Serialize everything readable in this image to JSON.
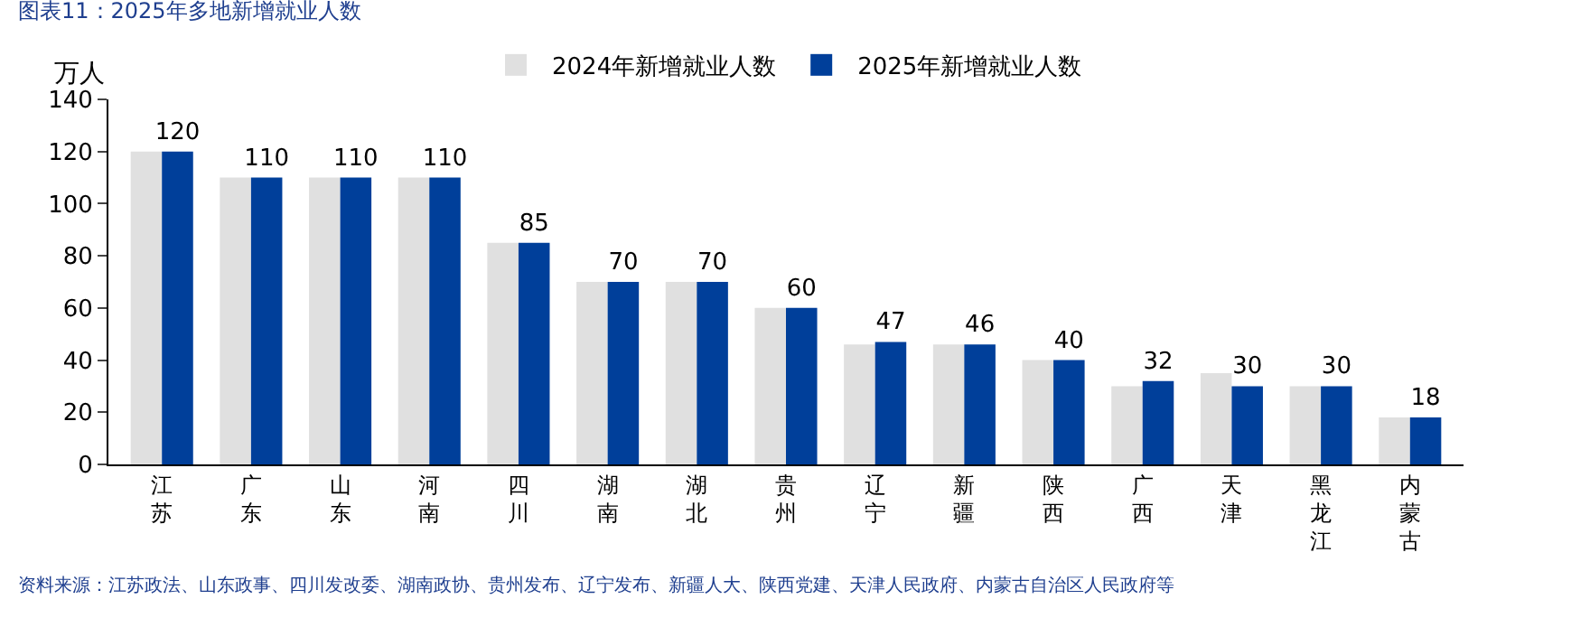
{
  "chart_data": {
    "type": "bar",
    "title": "图表11：2025年多地新增就业人数",
    "ylabel": "万人",
    "categories": [
      "江苏",
      "广东",
      "山东",
      "河南",
      "四川",
      "湖南",
      "湖北",
      "贵州",
      "辽宁",
      "新疆",
      "陕西",
      "广西",
      "天津",
      "黑龙江",
      "内蒙古"
    ],
    "series": [
      {
        "name": "2024年新增就业人数",
        "color": "#e0e0e0",
        "values": [
          120,
          110,
          110,
          110,
          85,
          70,
          70,
          60,
          46,
          46,
          40,
          30,
          35,
          30,
          18
        ]
      },
      {
        "name": "2025年新增就业人数",
        "color": "#003f9a",
        "values": [
          120,
          110,
          110,
          110,
          85,
          70,
          70,
          60,
          47,
          46,
          40,
          32,
          30,
          30,
          18
        ],
        "value_labels": [
          "120",
          "110",
          "110",
          "110",
          "85",
          "70",
          "70",
          "60",
          "47",
          "46",
          "40",
          "32",
          "30",
          "30",
          "18"
        ]
      }
    ],
    "ylim": [
      0,
      140
    ],
    "yticks": [
      0,
      20,
      40,
      60,
      80,
      100,
      120,
      140
    ],
    "legend": "top",
    "annotations": [
      "资料来源：江苏政法、山东政事、四川发改委、湖南政协、贵州发布、辽宁发布、新疆人大、陕西党建、天津人民政府、内蒙古自治区人民政府等"
    ]
  }
}
